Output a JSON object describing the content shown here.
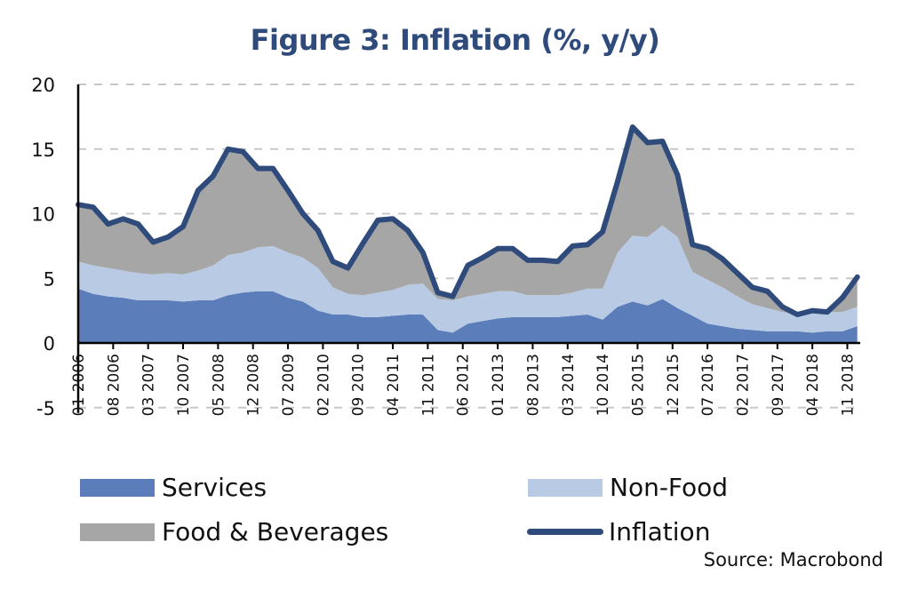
{
  "chart_data": {
    "type": "area",
    "title": "Figure 3: Inflation (%, y/y)",
    "xlabel": "",
    "ylabel": "",
    "ylim": [
      -5,
      20
    ],
    "yticks": [
      "20",
      "15",
      "10",
      "5",
      "0",
      "-5"
    ],
    "ytick_values": [
      20,
      15,
      10,
      5,
      0,
      -5
    ],
    "grid": "horizontal dashed",
    "legend_position": "bottom",
    "x_start": "01 2006",
    "x_end": "02 2019",
    "x_step_months": 3,
    "xtick_labels": [
      "01 2006",
      "08 2006",
      "03 2007",
      "10 2007",
      "05 2008",
      "12 2008",
      "07 2009",
      "02 2010",
      "09 2010",
      "04 2011",
      "11 2011",
      "06 2012",
      "01 2013",
      "08 2013",
      "03 2014",
      "10 2014",
      "05 2015",
      "12 2015",
      "07 2016",
      "02 2017",
      "09 2017",
      "04 2018",
      "11 2018"
    ],
    "xtick_month_offsets": [
      0,
      7,
      14,
      21,
      28,
      35,
      42,
      49,
      56,
      63,
      70,
      77,
      84,
      91,
      98,
      105,
      112,
      119,
      126,
      133,
      140,
      147,
      154
    ],
    "month_offsets": [
      0,
      3,
      6,
      9,
      12,
      15,
      18,
      21,
      24,
      27,
      30,
      33,
      36,
      39,
      42,
      45,
      48,
      51,
      54,
      57,
      60,
      63,
      66,
      69,
      72,
      75,
      78,
      81,
      84,
      87,
      90,
      93,
      96,
      99,
      102,
      105,
      108,
      111,
      114,
      117,
      120,
      123,
      126,
      129,
      132,
      135,
      138,
      141,
      144,
      147,
      150,
      153,
      156
    ],
    "series": [
      {
        "name": "Services",
        "kind": "stacked-area",
        "color": "#5b7dba",
        "values": [
          4.2,
          3.8,
          3.6,
          3.5,
          3.3,
          3.3,
          3.3,
          3.2,
          3.3,
          3.3,
          3.7,
          3.9,
          4.0,
          4.0,
          3.5,
          3.2,
          2.5,
          2.2,
          2.2,
          2.0,
          2.0,
          2.1,
          2.2,
          2.2,
          1.0,
          0.8,
          1.5,
          1.7,
          1.9,
          2.0,
          2.0,
          2.0,
          2.0,
          2.1,
          2.2,
          1.8,
          2.8,
          3.2,
          2.9,
          3.4,
          2.7,
          2.1,
          1.5,
          1.3,
          1.1,
          1.0,
          0.9,
          0.9,
          0.9,
          0.8,
          0.9,
          0.9,
          1.3
        ]
      },
      {
        "name": "Non-Food",
        "kind": "stacked-area",
        "color": "#b9cbe4",
        "values": [
          2.1,
          2.2,
          2.2,
          2.1,
          2.1,
          2.0,
          2.1,
          2.1,
          2.3,
          2.7,
          3.1,
          3.1,
          3.4,
          3.5,
          3.5,
          3.4,
          3.3,
          2.1,
          1.6,
          1.7,
          1.9,
          2.0,
          2.3,
          2.4,
          2.4,
          2.5,
          2.1,
          2.1,
          2.1,
          2.0,
          1.7,
          1.7,
          1.7,
          1.8,
          2.0,
          2.4,
          4.2,
          5.1,
          5.3,
          5.7,
          5.5,
          3.4,
          3.4,
          3.0,
          2.5,
          2.0,
          1.8,
          1.5,
          1.3,
          1.5,
          1.5,
          1.5,
          1.5
        ]
      },
      {
        "name": "Food & Beverages",
        "kind": "stacked-area",
        "color": "#a6a6a6",
        "values": [
          4.4,
          4.5,
          3.4,
          4.0,
          3.8,
          2.5,
          2.8,
          3.7,
          6.2,
          6.9,
          8.2,
          7.8,
          6.1,
          6.0,
          4.8,
          3.4,
          2.9,
          2.0,
          2.0,
          4.0,
          5.6,
          5.5,
          4.2,
          2.4,
          0.5,
          0.3,
          2.4,
          2.8,
          3.3,
          3.3,
          2.7,
          2.7,
          2.6,
          3.6,
          3.4,
          4.4,
          5.5,
          8.4,
          7.3,
          6.5,
          4.8,
          2.1,
          2.4,
          2.2,
          1.8,
          1.3,
          1.3,
          0.4,
          0.0,
          0.2,
          0.0,
          1.1,
          2.3
        ]
      },
      {
        "name": "Inflation",
        "kind": "line",
        "color": "#2f4b7c",
        "values": [
          10.7,
          10.5,
          9.2,
          9.6,
          9.2,
          7.8,
          8.2,
          9.0,
          11.8,
          12.9,
          15.0,
          14.8,
          13.5,
          13.5,
          11.8,
          10.0,
          8.7,
          6.3,
          5.8,
          7.7,
          9.5,
          9.6,
          8.7,
          7.0,
          3.9,
          3.6,
          6.0,
          6.6,
          7.3,
          7.3,
          6.4,
          6.4,
          6.3,
          7.5,
          7.6,
          8.6,
          12.5,
          16.7,
          15.5,
          15.6,
          13.0,
          7.6,
          7.3,
          6.5,
          5.4,
          4.3,
          4.0,
          2.8,
          2.2,
          2.5,
          2.4,
          3.5,
          5.1
        ]
      }
    ],
    "source": "Source:  Macrobond"
  },
  "legend": {
    "items": [
      {
        "label": "Services",
        "color": "#5b7dba",
        "type": "area"
      },
      {
        "label": "Non-Food",
        "color": "#b9cbe4",
        "type": "area"
      },
      {
        "label": "Food & Beverages",
        "color": "#a6a6a6",
        "type": "area"
      },
      {
        "label": "Inflation",
        "color": "#2f4b7c",
        "type": "line"
      }
    ]
  }
}
